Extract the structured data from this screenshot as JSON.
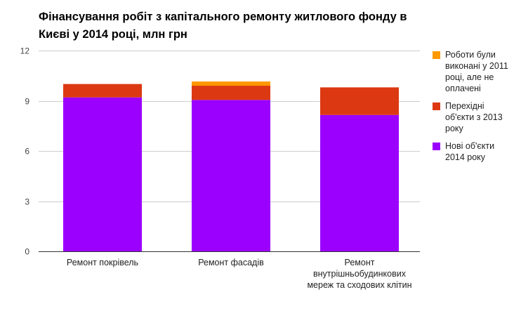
{
  "chart_data": {
    "type": "bar",
    "stacked": true,
    "title": "Фінансування робіт з капітального ремонту житлового фонду в Києві у 2014 році, млн грн",
    "categories": [
      "Ремонт покрівель",
      "Ремонт фасадів",
      "Ремонт внутрішньобудинкових мереж та сходових клітин"
    ],
    "category_lines": [
      [
        "Ремонт покрівель"
      ],
      [
        "Ремонт фасадів"
      ],
      [
        "Ремонт",
        "внутрішньобудинкових",
        "мереж та сходових клітин"
      ]
    ],
    "series": [
      {
        "name": "Нові об'єкти 2014 року",
        "legend_lines": [
          "Нові об'єкти",
          "2014 року"
        ],
        "color": "#9b00ff",
        "values": [
          9.2,
          9.05,
          8.15
        ]
      },
      {
        "name": "Перехідні об'єкти з 2013 року",
        "legend_lines": [
          "Перехідні",
          "об'єкти з 2013",
          "року"
        ],
        "color": "#dc3912",
        "values": [
          0.8,
          0.85,
          1.65
        ]
      },
      {
        "name": "Роботи були виконані у 2011 році, але не оплачені",
        "legend_lines": [
          "Роботи були",
          "виконані у 2011",
          "році, але не",
          "оплачені"
        ],
        "color": "#ff9900",
        "values": [
          0,
          0.25,
          0
        ]
      }
    ],
    "legend_order": [
      2,
      1,
      0
    ],
    "ylim": [
      0,
      12
    ],
    "yticks": [
      0,
      3,
      6,
      9,
      12
    ],
    "xlabel": "",
    "ylabel": "",
    "grid": true,
    "legend_position": "right"
  }
}
